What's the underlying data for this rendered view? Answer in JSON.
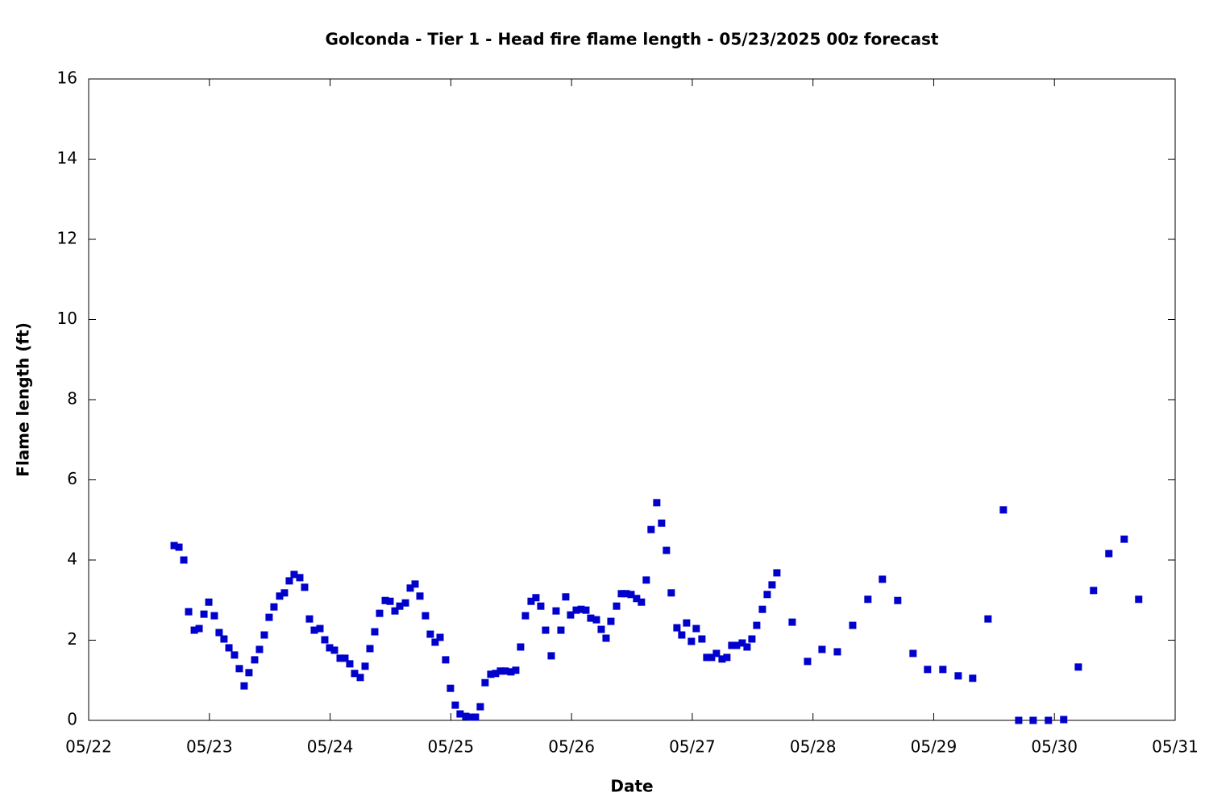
{
  "chart_data": {
    "type": "scatter",
    "title": "Golconda - Tier 1 - Head fire flame length - 05/23/2025 00z forecast",
    "x_label": "Date",
    "y_label": "Flame length (ft)",
    "color": "#0000cc",
    "x": [
      0.708,
      0.748,
      0.788,
      0.828,
      0.875,
      0.915,
      0.955,
      0.995,
      1.041,
      1.081,
      1.121,
      1.162,
      1.208,
      1.248,
      1.288,
      1.328,
      1.375,
      1.415,
      1.455,
      1.495,
      1.535,
      1.582,
      1.622,
      1.662,
      1.702,
      1.749,
      1.789,
      1.829,
      1.869,
      1.916,
      1.956,
      1.996,
      2.036,
      2.083,
      2.123,
      2.163,
      2.203,
      2.25,
      2.29,
      2.33,
      2.37,
      2.41,
      2.457,
      2.497,
      2.537,
      2.577,
      2.624,
      2.664,
      2.704,
      2.744,
      2.79,
      2.83,
      2.87,
      2.911,
      2.957,
      2.997,
      3.037,
      3.077,
      3.124,
      3.164,
      3.204,
      3.244,
      3.284,
      3.331,
      3.371,
      3.411,
      3.451,
      3.498,
      3.538,
      3.578,
      3.618,
      3.665,
      3.705,
      3.745,
      3.785,
      3.832,
      3.872,
      3.912,
      3.952,
      3.992,
      4.039,
      4.079,
      4.119,
      4.159,
      4.206,
      4.246,
      4.286,
      4.326,
      4.373,
      4.413,
      4.453,
      4.493,
      4.539,
      4.579,
      4.619,
      4.659,
      4.706,
      4.746,
      4.786,
      4.826,
      4.873,
      4.913,
      4.953,
      4.993,
      5.033,
      5.08,
      5.12,
      5.16,
      5.2,
      5.247,
      5.287,
      5.327,
      5.367,
      5.414,
      5.454,
      5.494,
      5.534,
      5.581,
      5.621,
      5.661,
      5.701,
      5.828,
      5.955,
      6.075,
      6.202,
      6.329,
      6.455,
      6.575,
      6.702,
      6.829,
      6.949,
      7.076,
      7.203,
      7.323,
      7.45,
      7.577,
      7.704,
      7.824,
      7.95,
      8.077,
      8.198,
      8.324,
      8.451,
      8.578,
      8.698
    ],
    "values": [
      4.36,
      4.32,
      4.0,
      2.71,
      2.25,
      2.29,
      2.65,
      2.95,
      2.61,
      2.19,
      2.03,
      1.81,
      1.63,
      1.29,
      0.86,
      1.19,
      1.51,
      1.77,
      2.13,
      2.57,
      2.83,
      3.1,
      3.18,
      3.48,
      3.64,
      3.56,
      3.32,
      2.53,
      2.25,
      2.29,
      2.01,
      1.81,
      1.75,
      1.55,
      1.55,
      1.41,
      1.17,
      1.07,
      1.35,
      1.79,
      2.21,
      2.67,
      2.99,
      2.97,
      2.73,
      2.85,
      2.93,
      3.3,
      3.4,
      3.1,
      2.61,
      2.15,
      1.95,
      2.07,
      1.51,
      0.8,
      0.38,
      0.16,
      0.1,
      0.08,
      0.08,
      0.34,
      0.94,
      1.15,
      1.17,
      1.23,
      1.23,
      1.21,
      1.25,
      1.83,
      2.61,
      2.97,
      3.06,
      2.85,
      2.25,
      1.61,
      2.73,
      2.25,
      3.08,
      2.63,
      2.75,
      2.77,
      2.75,
      2.55,
      2.51,
      2.27,
      2.05,
      2.47,
      2.85,
      3.16,
      3.16,
      3.14,
      3.04,
      2.95,
      3.5,
      4.76,
      5.43,
      4.92,
      4.24,
      3.18,
      2.31,
      2.13,
      2.43,
      1.97,
      2.29,
      2.03,
      1.57,
      1.57,
      1.67,
      1.53,
      1.57,
      1.87,
      1.87,
      1.93,
      1.83,
      2.03,
      2.37,
      2.77,
      3.14,
      3.38,
      3.68,
      2.45,
      1.47,
      1.77,
      1.71,
      2.37,
      3.02,
      3.52,
      2.99,
      1.67,
      1.27,
      1.27,
      1.11,
      1.05,
      2.53,
      5.25,
      0,
      0,
      0,
      0.02,
      1.33,
      3.24,
      4.16,
      4.52,
      3.02
    ],
    "xlim": [
      0,
      9
    ],
    "xticks": [
      {
        "value": 0,
        "label": "05/22"
      },
      {
        "value": 1,
        "label": "05/23"
      },
      {
        "value": 2,
        "label": "05/24"
      },
      {
        "value": 3,
        "label": "05/25"
      },
      {
        "value": 4,
        "label": "05/26"
      },
      {
        "value": 5,
        "label": "05/27"
      },
      {
        "value": 6,
        "label": "05/28"
      },
      {
        "value": 7,
        "label": "05/29"
      },
      {
        "value": 8,
        "label": "05/30"
      },
      {
        "value": 9,
        "label": "05/31"
      }
    ],
    "ylim": [
      0,
      16
    ],
    "yticks": [
      0,
      2,
      4,
      6,
      8,
      10,
      12,
      14,
      16
    ],
    "grid": false
  }
}
